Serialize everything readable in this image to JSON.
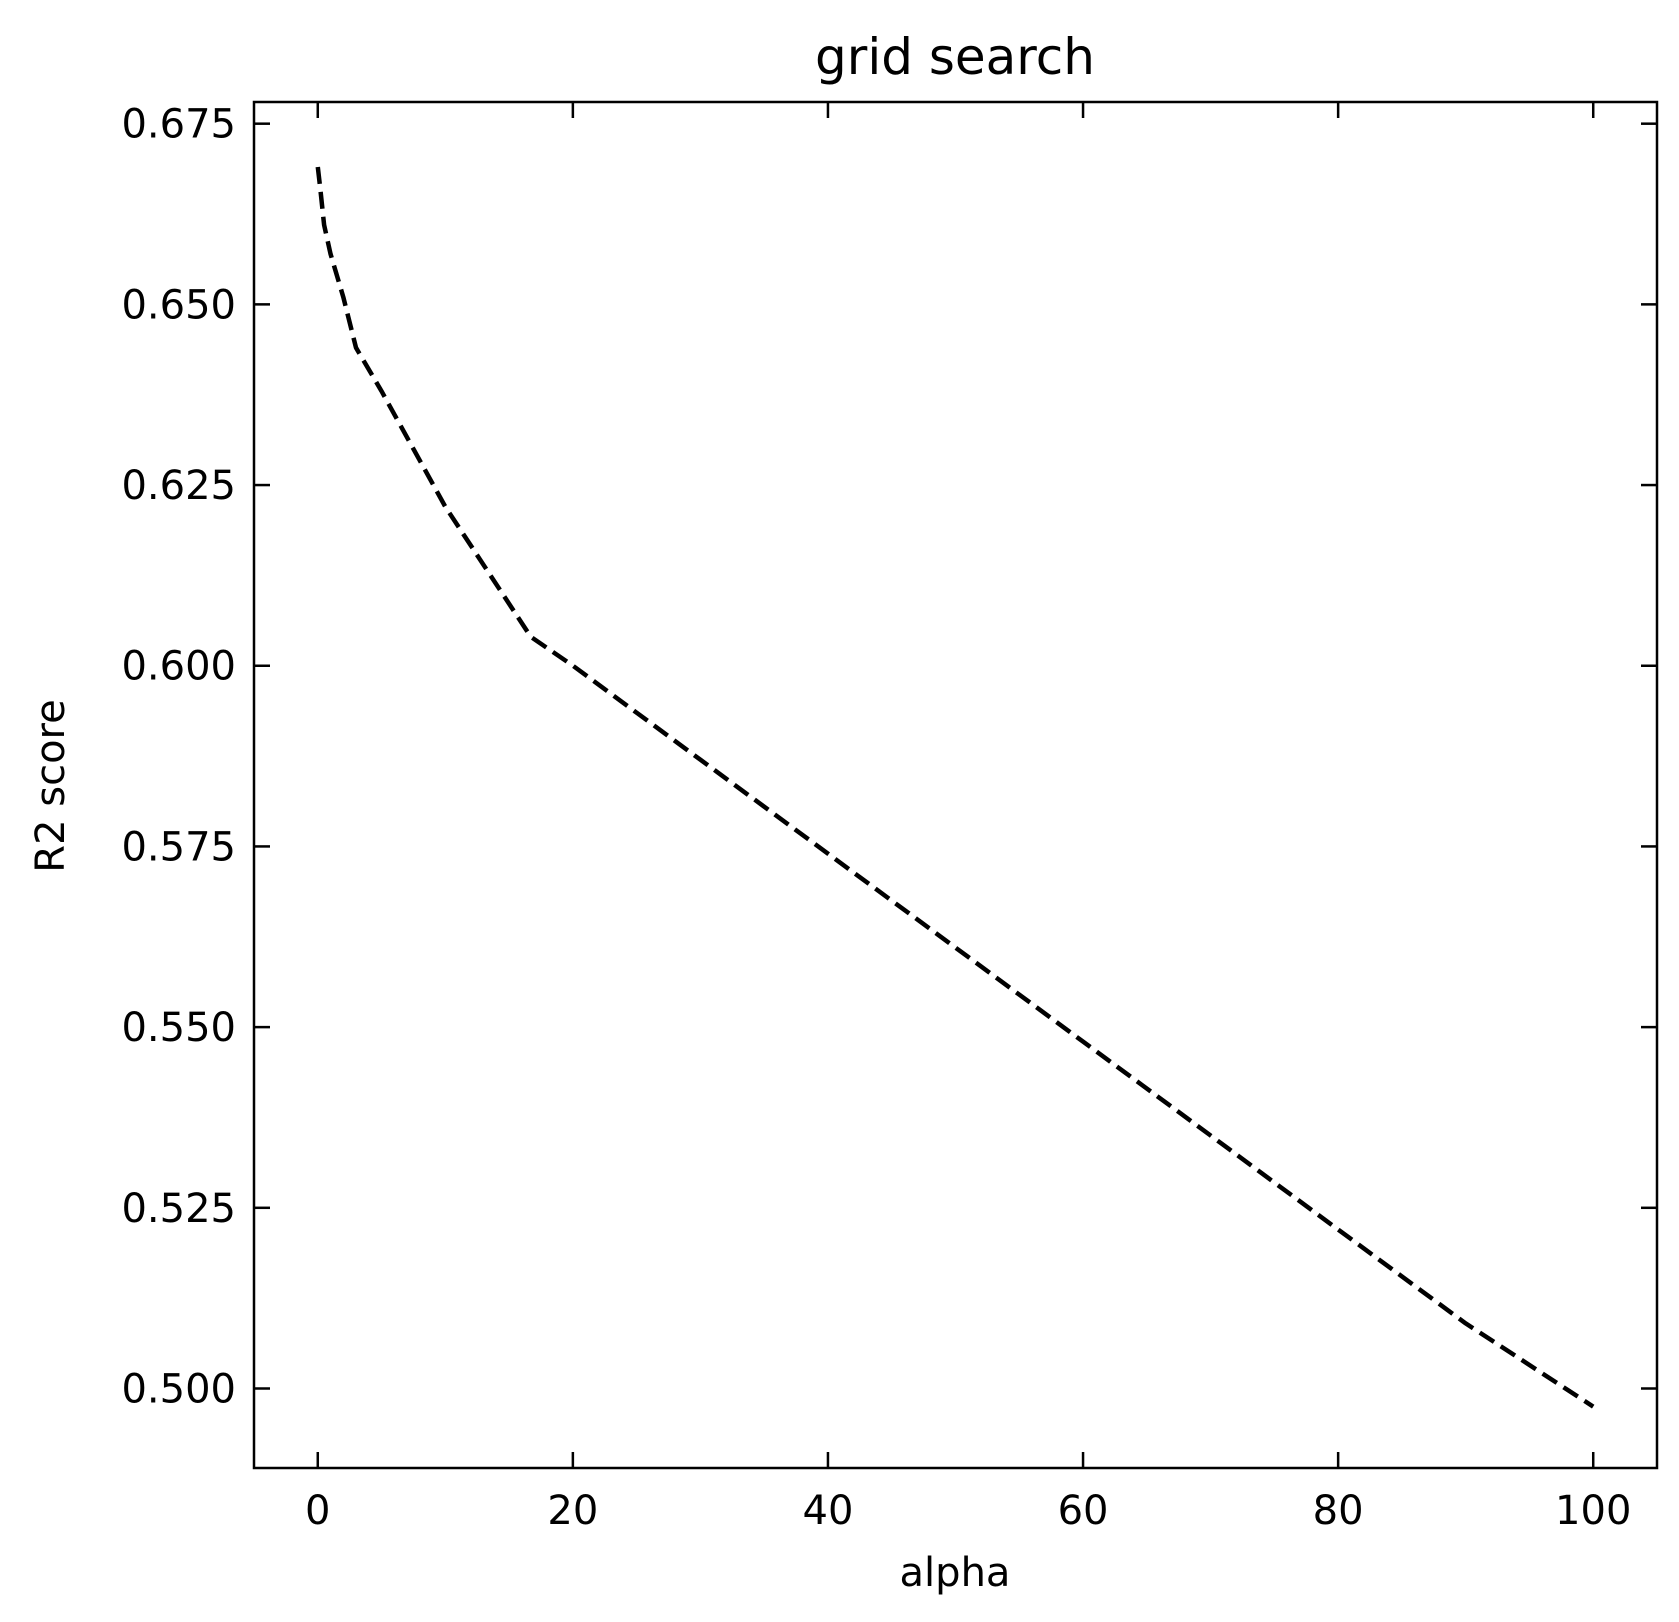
{
  "chart_data": {
    "type": "line",
    "title": "grid search",
    "xlabel": "alpha",
    "ylabel": "R2 score",
    "xlim": [
      -5,
      105
    ],
    "ylim": [
      0.489,
      0.678
    ],
    "xticks": [
      0,
      20,
      40,
      60,
      80,
      100
    ],
    "xtick_labels": [
      "0",
      "20",
      "40",
      "60",
      "80",
      "100"
    ],
    "yticks": [
      0.5,
      0.525,
      0.55,
      0.575,
      0.6,
      0.625,
      0.65,
      0.675
    ],
    "ytick_labels": [
      "0.500",
      "0.525",
      "0.550",
      "0.575",
      "0.600",
      "0.625",
      "0.650",
      "0.675"
    ],
    "grid": false,
    "tick_direction": "in",
    "series": [
      {
        "line_style": "dashed",
        "color": "#000000",
        "x": [
          0,
          0.2,
          0.5,
          1,
          2,
          3,
          5,
          10,
          16.7,
          20,
          30,
          40,
          50,
          60,
          70,
          80,
          90,
          100
        ],
        "y": [
          0.669,
          0.666,
          0.661,
          0.657,
          0.651,
          0.644,
          0.638,
          0.622,
          0.604,
          0.6,
          0.587,
          0.574,
          0.561,
          0.548,
          0.535,
          0.522,
          0.509,
          0.4975
        ]
      }
    ]
  }
}
